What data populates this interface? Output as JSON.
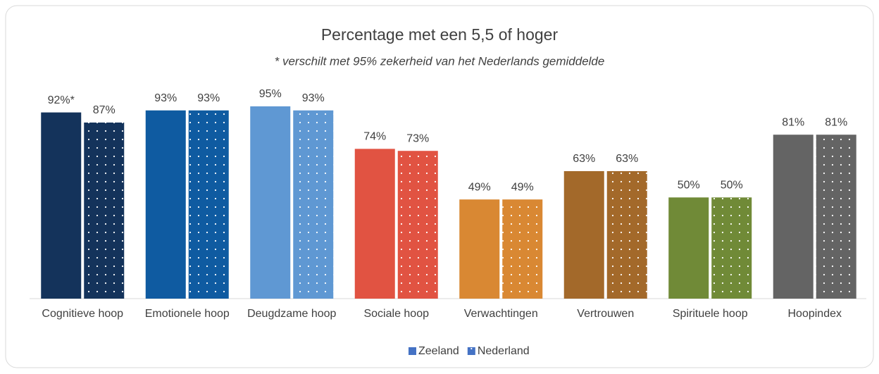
{
  "chart_data": {
    "type": "bar",
    "title": "Percentage met een 5,5 of hoger",
    "subtitle": "* verschilt met 95% zekerheid van het Nederlands gemiddelde",
    "categories": [
      "Cognitieve hoop",
      "Emotionele hoop",
      "Deugdzame hoop",
      "Sociale hoop",
      "Verwachtingen",
      "Vertrouwen",
      "Spirituele hoop",
      "Hoopindex"
    ],
    "category_colors": [
      "#14335b",
      "#0f5ba1",
      "#5f98d3",
      "#e15342",
      "#d98833",
      "#a3692a",
      "#708a37",
      "#646464"
    ],
    "series": [
      {
        "name": "Zeeland",
        "color": "#4472c4",
        "pattern": "solid",
        "values": [
          92,
          93,
          95,
          74,
          49,
          63,
          50,
          81
        ],
        "value_labels": [
          "92%*",
          "93%",
          "95%",
          "74%",
          "49%",
          "63%",
          "50%",
          "81%"
        ]
      },
      {
        "name": "Nederland",
        "color": "#4472c4",
        "pattern": "dotted",
        "values": [
          87,
          93,
          93,
          73,
          49,
          63,
          50,
          81
        ],
        "value_labels": [
          "87%",
          "93%",
          "93%",
          "73%",
          "49%",
          "63%",
          "50%",
          "81%"
        ]
      }
    ],
    "legend": "bottom"
  }
}
